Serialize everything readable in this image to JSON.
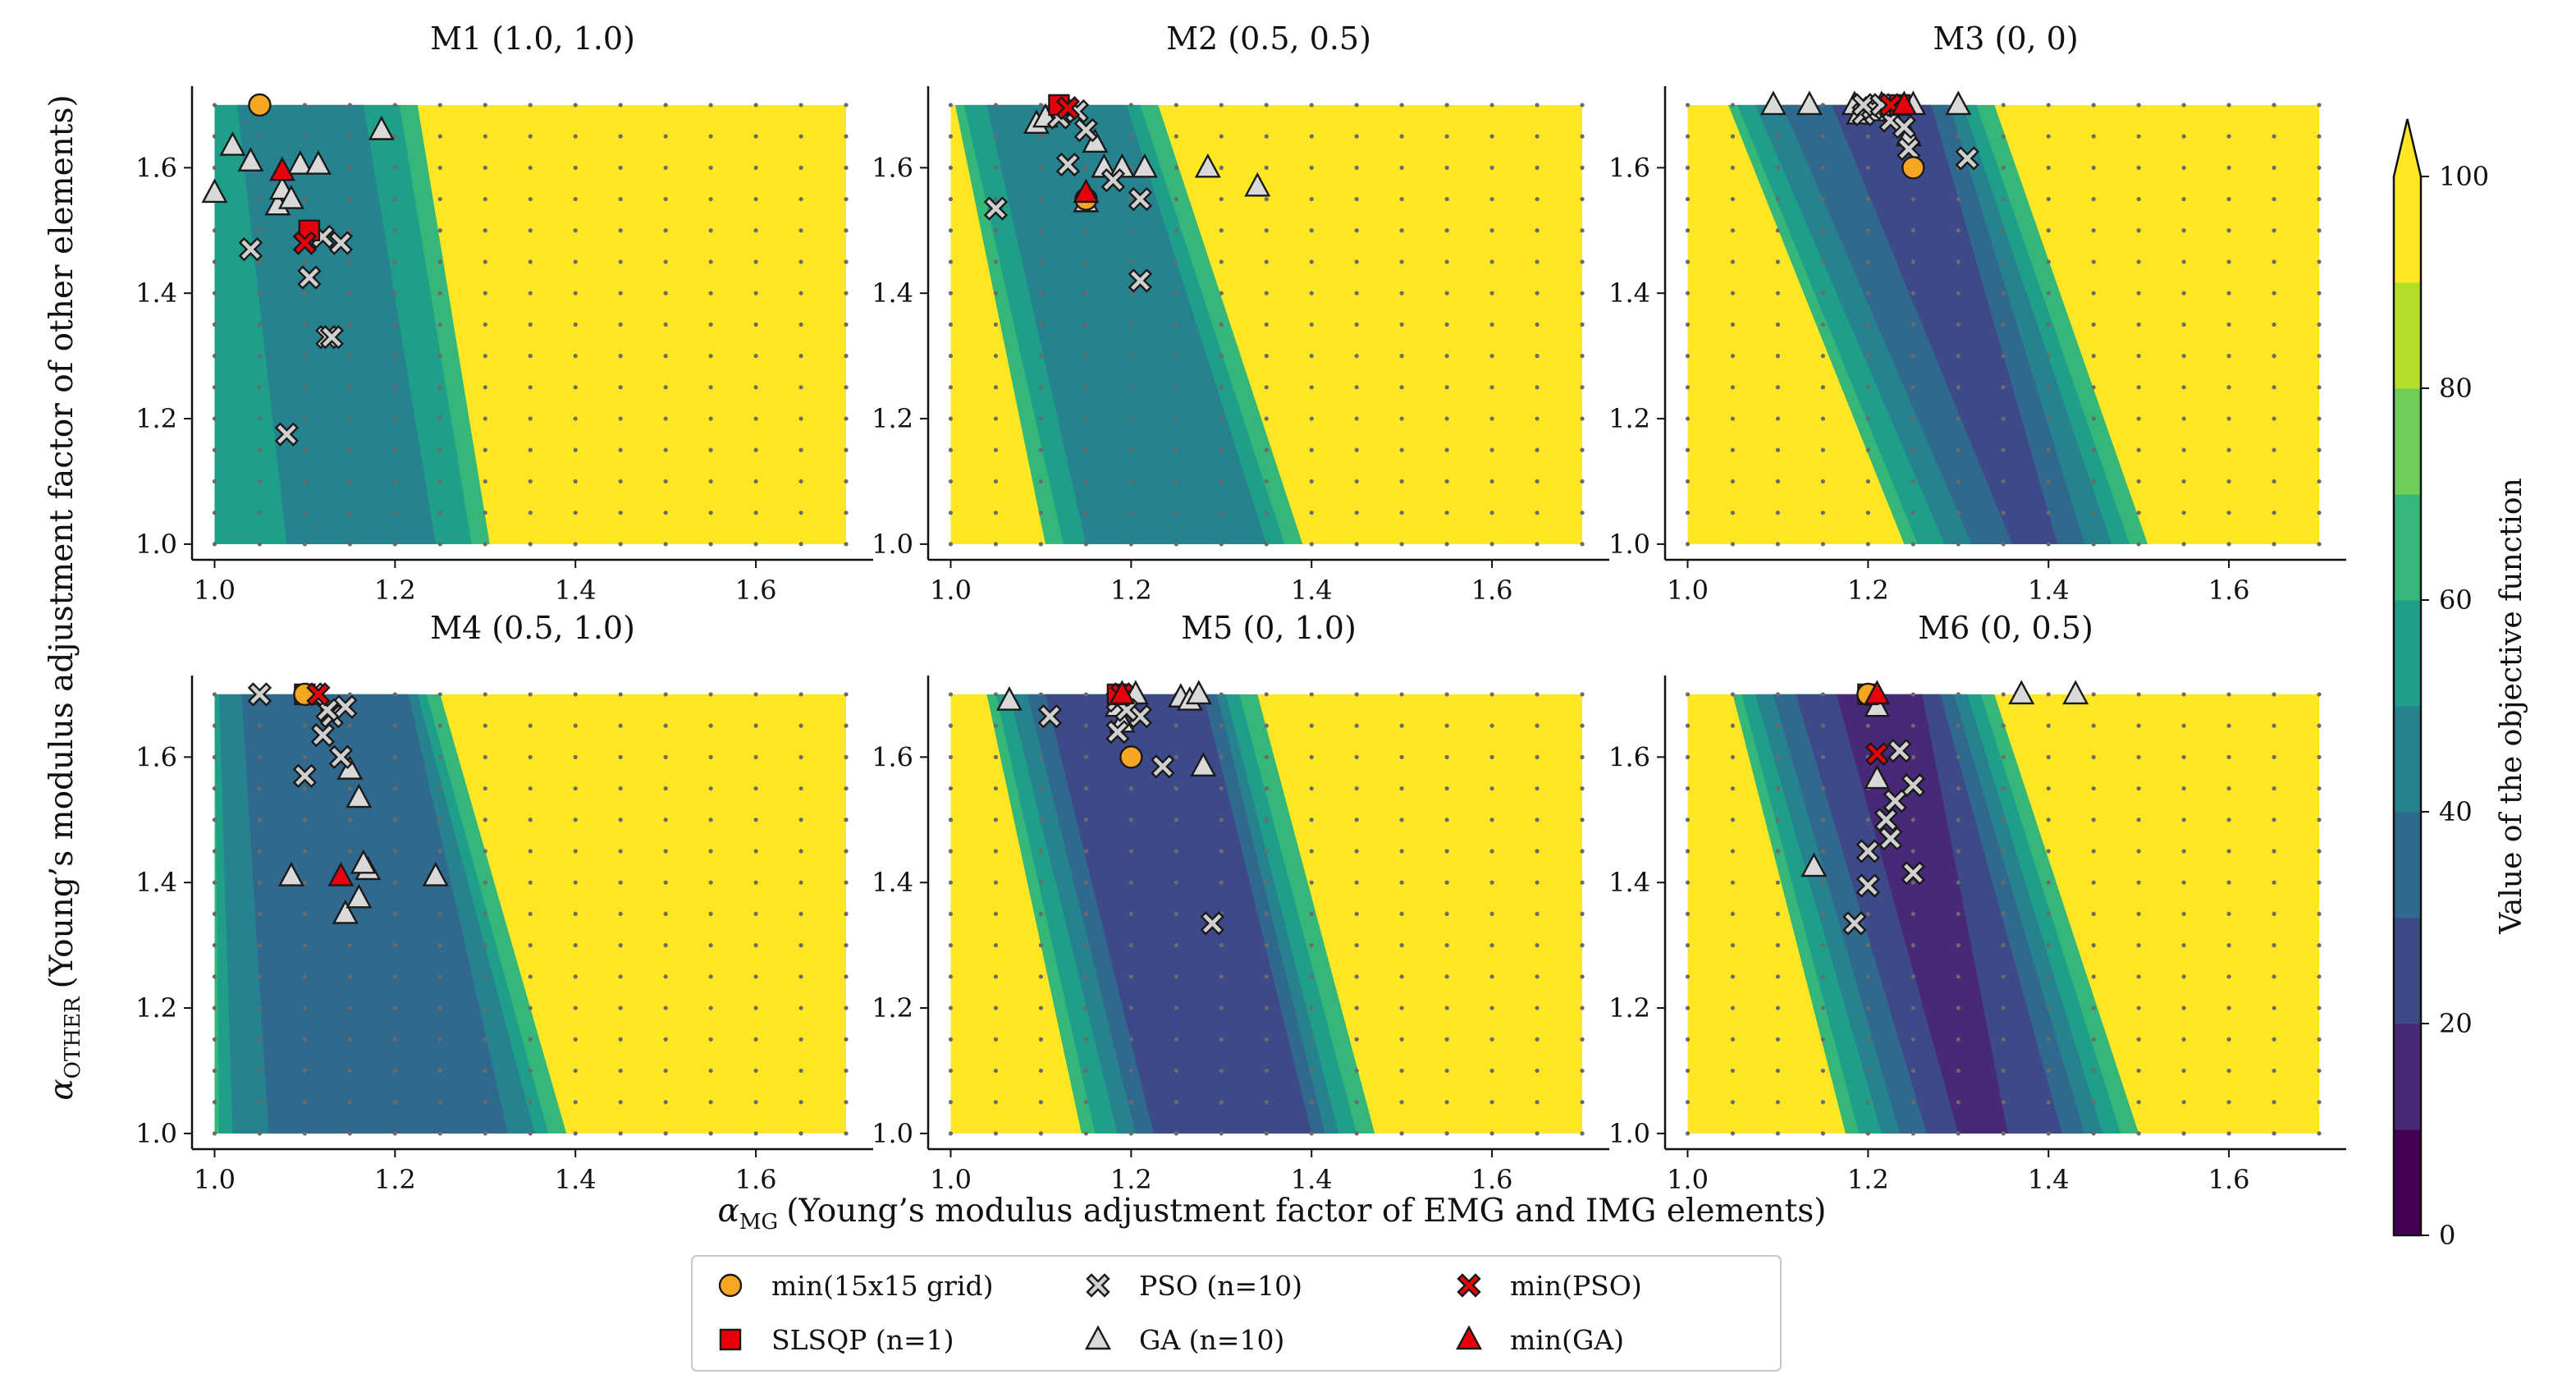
{
  "chart_data": {
    "type": "contour",
    "xlabel_symbol": "α",
    "xlabel_sub": "MG",
    "xlabel": "(Young’s modulus adjustment factor of EMG and IMG elements)",
    "ylabel_symbol": "α",
    "ylabel_sub": "OTHER",
    "ylabel": "(Young’s modulus adjustment factor of other elements)",
    "xlim": [
      0.975,
      1.73
    ],
    "ylim": [
      0.975,
      1.73
    ],
    "xticks": [
      1.0,
      1.2,
      1.4,
      1.6
    ],
    "xtick_labels": [
      "1.0",
      "1.2",
      "1.4",
      "1.6"
    ],
    "yticks": [
      1.0,
      1.2,
      1.4,
      1.6
    ],
    "ytick_labels": [
      "1.0",
      "1.2",
      "1.4",
      "1.6"
    ],
    "grid_values": [
      1.0,
      1.05,
      1.1,
      1.15,
      1.2,
      1.25,
      1.3,
      1.35,
      1.4,
      1.45,
      1.5,
      1.55,
      1.6,
      1.65,
      1.7
    ],
    "colorbar": {
      "label": "Value of the objective function",
      "ticks": [
        0,
        20,
        40,
        60,
        80,
        100
      ],
      "tick_labels": [
        "0",
        "20",
        "40",
        "60",
        "80",
        "100"
      ],
      "extend": "max",
      "levels": [
        {
          "from": 0,
          "to": 10,
          "color": "#440154"
        },
        {
          "from": 10,
          "to": 20,
          "color": "#482878"
        },
        {
          "from": 20,
          "to": 30,
          "color": "#3e4989"
        },
        {
          "from": 30,
          "to": 40,
          "color": "#31688e"
        },
        {
          "from": 40,
          "to": 50,
          "color": "#26828e"
        },
        {
          "from": 50,
          "to": 60,
          "color": "#1f9e89"
        },
        {
          "from": 60,
          "to": 70,
          "color": "#35b779"
        },
        {
          "from": 70,
          "to": 80,
          "color": "#6ece58"
        },
        {
          "from": 80,
          "to": 90,
          "color": "#b5de2b"
        },
        {
          "from": 90,
          "to": 100,
          "color": "#fde725"
        }
      ]
    },
    "legend": {
      "placement": "bottom-center",
      "entries": [
        {
          "label": "min(15x15 grid)",
          "marker": "circle",
          "color": "#f5a623"
        },
        {
          "label": "SLSQP (n=1)",
          "marker": "square",
          "color": "#e8000b"
        },
        {
          "label": "PSO (n=10)",
          "marker": "x",
          "color": "#d0d0d0"
        },
        {
          "label": "GA (n=10)",
          "marker": "triangle",
          "color": "#d9d9d9"
        },
        {
          "label": "min(PSO)",
          "marker": "x",
          "color": "#e8000b"
        },
        {
          "label": "min(GA)",
          "marker": "triangle",
          "color": "#e8000b"
        }
      ]
    },
    "panels": [
      {
        "title": "M1 (1.0, 1.0)",
        "contour_bands": [
          {
            "level": 60,
            "top": [
              1.005,
              1.225
            ],
            "bottom": [
              1.0,
              1.305
            ]
          },
          {
            "level": 50,
            "top": [
              1.0,
              1.205
            ],
            "bottom": [
              1.0,
              1.285
            ]
          },
          {
            "level": 40,
            "top": [
              1.025,
              1.165
            ],
            "bottom": [
              1.08,
              1.245
            ]
          }
        ],
        "grid_min": [
          1.05,
          1.7
        ],
        "slsqp": [
          [
            1.105,
            1.5
          ]
        ],
        "pso": [
          [
            1.04,
            1.47
          ],
          [
            1.1,
            1.48
          ],
          [
            1.105,
            1.425
          ],
          [
            1.125,
            1.33
          ],
          [
            1.08,
            1.175
          ],
          [
            1.13,
            1.33
          ],
          [
            1.12,
            1.49
          ],
          [
            1.14,
            1.48
          ]
        ],
        "pso_min": [
          1.1,
          1.48
        ],
        "ga": [
          [
            1.0,
            1.56
          ],
          [
            1.02,
            1.635
          ],
          [
            1.04,
            1.61
          ],
          [
            1.07,
            1.54
          ],
          [
            1.075,
            1.565
          ],
          [
            1.095,
            1.605
          ],
          [
            1.115,
            1.605
          ],
          [
            1.185,
            1.66
          ],
          [
            1.085,
            1.55
          ]
        ],
        "ga_min": [
          1.075,
          1.595
        ]
      },
      {
        "title": "M2 (0.5, 0.5)",
        "contour_bands": [
          {
            "level": 60,
            "top": [
              1.005,
              1.23
            ],
            "bottom": [
              1.105,
              1.39
            ]
          },
          {
            "level": 50,
            "top": [
              1.015,
              1.21
            ],
            "bottom": [
              1.125,
              1.37
            ]
          },
          {
            "level": 40,
            "top": [
              1.04,
              1.195
            ],
            "bottom": [
              1.15,
              1.35
            ]
          }
        ],
        "grid_min": [
          1.15,
          1.55
        ],
        "slsqp": [
          [
            1.12,
            1.7
          ]
        ],
        "pso": [
          [
            1.05,
            1.535
          ],
          [
            1.13,
            1.605
          ],
          [
            1.18,
            1.58
          ],
          [
            1.21,
            1.55
          ],
          [
            1.21,
            1.42
          ],
          [
            1.15,
            1.66
          ],
          [
            1.14,
            1.69
          ],
          [
            1.12,
            1.68
          ]
        ],
        "pso_min": [
          1.13,
          1.695
        ],
        "ga": [
          [
            1.095,
            1.67
          ],
          [
            1.105,
            1.68
          ],
          [
            1.16,
            1.64
          ],
          [
            1.17,
            1.6
          ],
          [
            1.19,
            1.6
          ],
          [
            1.215,
            1.6
          ],
          [
            1.285,
            1.6
          ],
          [
            1.34,
            1.57
          ],
          [
            1.15,
            1.545
          ]
        ],
        "ga_min": [
          1.15,
          1.56
        ]
      },
      {
        "title": "M3 (0, 0)",
        "contour_bands": [
          {
            "level": 60,
            "top": [
              1.045,
              1.34
            ],
            "bottom": [
              1.24,
              1.51
            ]
          },
          {
            "level": 50,
            "top": [
              1.055,
              1.32
            ],
            "bottom": [
              1.255,
              1.49
            ]
          },
          {
            "level": 40,
            "top": [
              1.075,
              1.305
            ],
            "bottom": [
              1.285,
              1.47
            ]
          },
          {
            "level": 30,
            "top": [
              1.105,
              1.29
            ],
            "bottom": [
              1.315,
              1.44
            ]
          },
          {
            "level": 20,
            "top": [
              1.16,
              1.27
            ],
            "bottom": [
              1.36,
              1.41
            ]
          }
        ],
        "grid_min": [
          1.25,
          1.6
        ],
        "slsqp": [
          [
            1.235,
            1.7
          ]
        ],
        "pso": [
          [
            1.195,
            1.685
          ],
          [
            1.205,
            1.695
          ],
          [
            1.225,
            1.675
          ],
          [
            1.24,
            1.665
          ],
          [
            1.245,
            1.63
          ],
          [
            1.31,
            1.615
          ],
          [
            1.195,
            1.7
          ],
          [
            1.215,
            1.7
          ]
        ],
        "pso_min": [
          1.225,
          1.7
        ],
        "ga": [
          [
            1.095,
            1.7
          ],
          [
            1.135,
            1.7
          ],
          [
            1.185,
            1.7
          ],
          [
            1.21,
            1.69
          ],
          [
            1.215,
            1.7
          ],
          [
            1.245,
            1.65
          ],
          [
            1.25,
            1.7
          ],
          [
            1.3,
            1.7
          ],
          [
            1.19,
            1.685
          ]
        ],
        "ga_min": [
          1.24,
          1.7
        ]
      },
      {
        "title": "M4 (0.5, 1.0)",
        "contour_bands": [
          {
            "level": 60,
            "top": [
              1.0,
              1.25
            ],
            "bottom": [
              1.0,
              1.39
            ]
          },
          {
            "level": 50,
            "top": [
              1.0,
              1.235
            ],
            "bottom": [
              1.005,
              1.37
            ]
          },
          {
            "level": 40,
            "top": [
              1.005,
              1.225
            ],
            "bottom": [
              1.02,
              1.355
            ]
          },
          {
            "level": 30,
            "top": [
              1.03,
              1.215
            ],
            "bottom": [
              1.06,
              1.325
            ]
          }
        ],
        "grid_min": [
          1.1,
          1.7
        ],
        "slsqp": [
          [
            1.1,
            1.7
          ]
        ],
        "pso": [
          [
            1.05,
            1.7
          ],
          [
            1.1,
            1.57
          ],
          [
            1.12,
            1.635
          ],
          [
            1.14,
            1.6
          ],
          [
            1.13,
            1.665
          ],
          [
            1.145,
            1.68
          ],
          [
            1.125,
            1.675
          ],
          [
            1.11,
            1.7
          ]
        ],
        "pso_min": [
          1.115,
          1.7
        ],
        "ga": [
          [
            1.085,
            1.41
          ],
          [
            1.145,
            1.35
          ],
          [
            1.16,
            1.375
          ],
          [
            1.17,
            1.42
          ],
          [
            1.16,
            1.535
          ],
          [
            1.15,
            1.58
          ],
          [
            1.245,
            1.41
          ],
          [
            1.165,
            1.43
          ]
        ],
        "ga_min": [
          1.14,
          1.41
        ]
      },
      {
        "title": "M5 (0, 1.0)",
        "contour_bands": [
          {
            "level": 60,
            "top": [
              1.04,
              1.34
            ],
            "bottom": [
              1.145,
              1.47
            ]
          },
          {
            "level": 50,
            "top": [
              1.05,
              1.32
            ],
            "bottom": [
              1.16,
              1.45
            ]
          },
          {
            "level": 40,
            "top": [
              1.065,
              1.305
            ],
            "bottom": [
              1.185,
              1.43
            ]
          },
          {
            "level": 30,
            "top": [
              1.085,
              1.295
            ],
            "bottom": [
              1.205,
              1.415
            ]
          },
          {
            "level": 20,
            "top": [
              1.105,
              1.28
            ],
            "bottom": [
              1.225,
              1.4
            ]
          }
        ],
        "grid_min": [
          1.2,
          1.6
        ],
        "slsqp": [
          [
            1.185,
            1.7
          ]
        ],
        "pso": [
          [
            1.11,
            1.665
          ],
          [
            1.185,
            1.64
          ],
          [
            1.185,
            1.69
          ],
          [
            1.19,
            1.7
          ],
          [
            1.21,
            1.665
          ],
          [
            1.235,
            1.585
          ],
          [
            1.29,
            1.335
          ],
          [
            1.195,
            1.675
          ]
        ],
        "pso_min": [
          1.19,
          1.7
        ],
        "ga": [
          [
            1.065,
            1.69
          ],
          [
            1.185,
            1.68
          ],
          [
            1.205,
            1.7
          ],
          [
            1.255,
            1.695
          ],
          [
            1.265,
            1.69
          ],
          [
            1.275,
            1.7
          ],
          [
            1.28,
            1.585
          ],
          [
            1.19,
            1.655
          ]
        ],
        "ga_min": [
          1.19,
          1.7
        ]
      },
      {
        "title": "M6 (0, 0.5)",
        "contour_bands": [
          {
            "level": 60,
            "top": [
              1.05,
              1.34
            ],
            "bottom": [
              1.175,
              1.5
            ]
          },
          {
            "level": 50,
            "top": [
              1.06,
              1.325
            ],
            "bottom": [
              1.19,
              1.48
            ]
          },
          {
            "level": 40,
            "top": [
              1.075,
              1.31
            ],
            "bottom": [
              1.215,
              1.46
            ]
          },
          {
            "level": 30,
            "top": [
              1.095,
              1.295
            ],
            "bottom": [
              1.235,
              1.44
            ]
          },
          {
            "level": 20,
            "top": [
              1.12,
              1.28
            ],
            "bottom": [
              1.265,
              1.415
            ]
          },
          {
            "level": 10,
            "top": [
              1.165,
              1.26
            ],
            "bottom": [
              1.3,
              1.355
            ]
          }
        ],
        "grid_min": [
          1.2,
          1.7
        ],
        "slsqp": [
          [
            1.2,
            1.7
          ]
        ],
        "pso": [
          [
            1.185,
            1.335
          ],
          [
            1.2,
            1.395
          ],
          [
            1.2,
            1.45
          ],
          [
            1.22,
            1.5
          ],
          [
            1.225,
            1.47
          ],
          [
            1.235,
            1.61
          ],
          [
            1.25,
            1.555
          ],
          [
            1.25,
            1.415
          ],
          [
            1.23,
            1.53
          ]
        ],
        "pso_min": [
          1.21,
          1.605
        ],
        "ga": [
          [
            1.14,
            1.425
          ],
          [
            1.21,
            1.565
          ],
          [
            1.21,
            1.68
          ],
          [
            1.37,
            1.7
          ],
          [
            1.43,
            1.7
          ]
        ],
        "ga_min": [
          1.21,
          1.7
        ]
      }
    ],
    "colors": {
      "background_field": "#fde725",
      "grid_dot": "#6b6b6b",
      "marker_edge": "#1a1a1a",
      "grid_min": "#f5a623",
      "slsqp": "#e8000b",
      "pso": "#d0d0d0",
      "ga": "#d9d9d9",
      "pso_min": "#e8000b",
      "ga_min": "#e8000b"
    }
  }
}
